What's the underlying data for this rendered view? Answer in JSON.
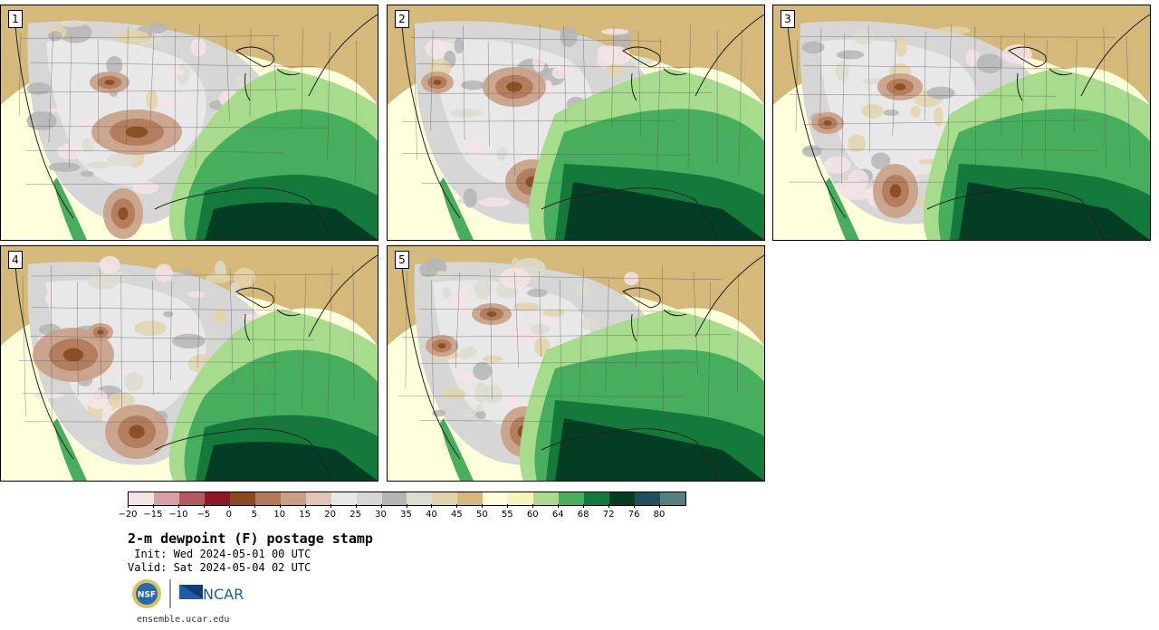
{
  "panels": [
    {
      "label": "1"
    },
    {
      "label": "2"
    },
    {
      "label": "3"
    },
    {
      "label": "4"
    },
    {
      "label": "5"
    }
  ],
  "colorbar": {
    "colors": [
      "#f4e4e6",
      "#d6a0a4",
      "#b35a60",
      "#8c1a22",
      "#8a4a1e",
      "#b07a58",
      "#c9a086",
      "#e1c4b3",
      "#e8e8e8",
      "#d6d6d6",
      "#b5b5b5",
      "#dcdcd0",
      "#e2d3aa",
      "#d4b97a",
      "#ffffdc",
      "#f6f6b8",
      "#a6dc8c",
      "#46ae5c",
      "#137a3c",
      "#033e24",
      "#1e5060",
      "#55807e"
    ],
    "ticks": [
      "−20",
      "−15",
      "−10",
      "−5",
      "0",
      "5",
      "10",
      "15",
      "20",
      "25",
      "30",
      "35",
      "40",
      "45",
      "50",
      "55",
      "60",
      "64",
      "68",
      "72",
      "76",
      "80"
    ]
  },
  "title": "2-m dewpoint (F) postage stamp",
  "init": " Init: Wed 2024-05-01 00 UTC",
  "valid": "Valid: Sat 2024-05-04 02 UTC",
  "logo": {
    "nsf": "NSF",
    "ncar": "NCAR"
  },
  "site": "ensemble.ucar.edu"
}
